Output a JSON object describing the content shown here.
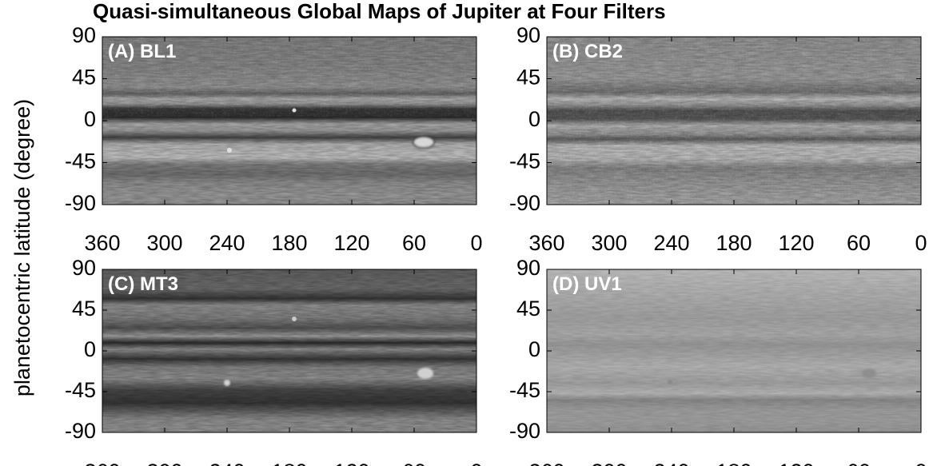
{
  "figure": {
    "title": "Quasi-simultaneous Global Maps of Jupiter at Four Filters",
    "ylabel": "planetocentric latitude (degree)",
    "lat_ticks": [
      "90",
      "45",
      "0",
      "-45",
      "-90"
    ],
    "lon_ticks": [
      "360",
      "300",
      "240",
      "180",
      "120",
      "60",
      "0"
    ]
  },
  "panels": [
    {
      "label": "(A) BL1",
      "filter": "BL1"
    },
    {
      "label": "(B) CB2",
      "filter": "CB2"
    },
    {
      "label": "(C) MT3",
      "filter": "MT3"
    },
    {
      "label": "(D) UV1",
      "filter": "UV1"
    }
  ],
  "colors": {
    "background": "#ffffff",
    "axis": "#000000",
    "panel_label": "#ffffff"
  }
}
